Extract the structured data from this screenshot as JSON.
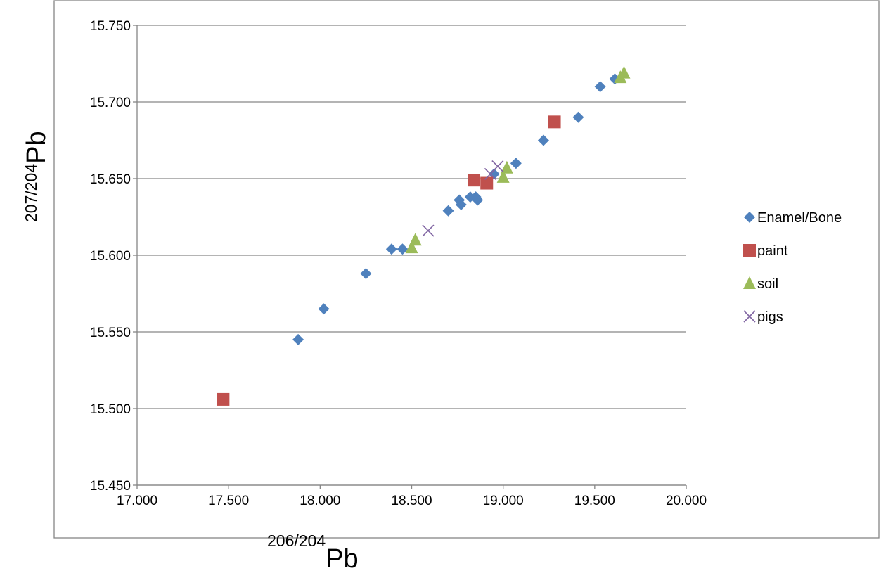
{
  "chart_data": {
    "type": "scatter",
    "xlabel": {
      "superscript": "206/204",
      "main": "Pb"
    },
    "ylabel": {
      "superscript": "207/204",
      "main": "Pb"
    },
    "xlim": [
      17.0,
      20.0
    ],
    "ylim": [
      15.45,
      15.75
    ],
    "x_ticks": [
      "17.000",
      "17.500",
      "18.000",
      "18.500",
      "19.000",
      "19.500",
      "20.000"
    ],
    "y_ticks": [
      "15.450",
      "15.500",
      "15.550",
      "15.600",
      "15.650",
      "15.700",
      "15.750"
    ],
    "grid": "horizontal",
    "legend_position": "right",
    "series": [
      {
        "name": "Enamel/Bone",
        "marker": "diamond",
        "color": "#4F81BD",
        "points": [
          [
            17.88,
            15.545
          ],
          [
            18.02,
            15.565
          ],
          [
            18.25,
            15.588
          ],
          [
            18.39,
            15.604
          ],
          [
            18.45,
            15.604
          ],
          [
            18.7,
            15.629
          ],
          [
            18.76,
            15.636
          ],
          [
            18.77,
            15.633
          ],
          [
            18.82,
            15.638
          ],
          [
            18.85,
            15.638
          ],
          [
            18.86,
            15.636
          ],
          [
            18.95,
            15.653
          ],
          [
            19.07,
            15.66
          ],
          [
            19.22,
            15.675
          ],
          [
            19.41,
            15.69
          ],
          [
            19.53,
            15.71
          ],
          [
            19.61,
            15.715
          ]
        ]
      },
      {
        "name": "paint",
        "marker": "square",
        "color": "#C0504D",
        "points": [
          [
            17.47,
            15.506
          ],
          [
            18.84,
            15.649
          ],
          [
            18.91,
            15.647
          ],
          [
            19.28,
            15.687
          ]
        ]
      },
      {
        "name": "soil",
        "marker": "triangle",
        "color": "#9BBB59",
        "points": [
          [
            18.5,
            15.605
          ],
          [
            18.52,
            15.61
          ],
          [
            19.0,
            15.651
          ],
          [
            19.02,
            15.657
          ],
          [
            19.64,
            15.716
          ],
          [
            19.66,
            15.719
          ]
        ]
      },
      {
        "name": "pigs",
        "marker": "x",
        "color": "#8064A2",
        "points": [
          [
            18.59,
            15.616
          ],
          [
            18.93,
            15.653
          ],
          [
            18.97,
            15.658
          ]
        ]
      }
    ]
  }
}
